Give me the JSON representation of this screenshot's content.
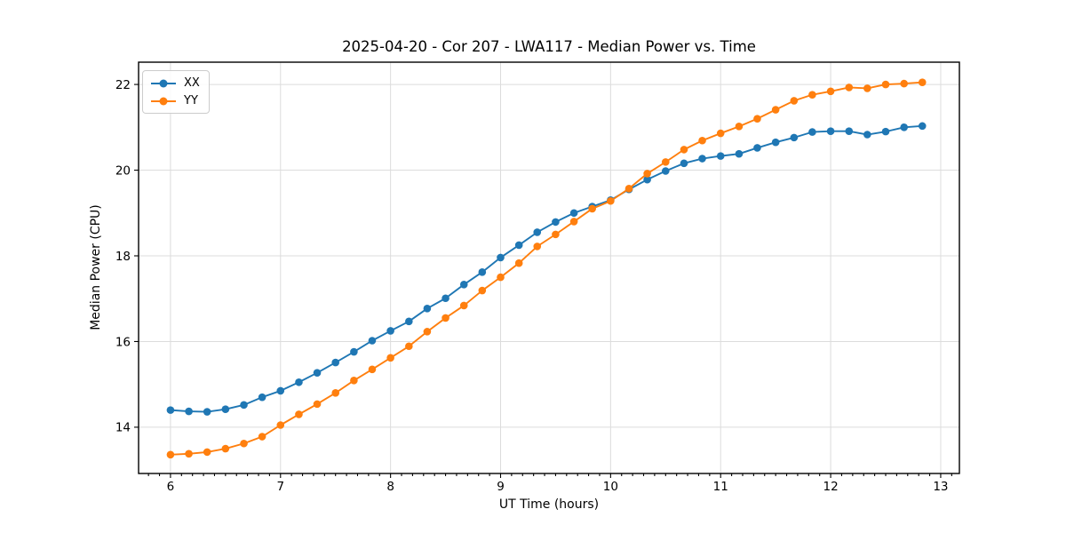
{
  "chart_data": {
    "type": "line",
    "title": "2025-04-20 - Cor 207 - LWA117 - Median Power vs. Time",
    "xlabel": "UT Time (hours)",
    "ylabel": "Median Power (CPU)",
    "xlim": [
      5.71,
      13.17
    ],
    "ylim": [
      12.92,
      22.52
    ],
    "xticks": [
      6,
      7,
      8,
      9,
      10,
      11,
      12,
      13
    ],
    "x_minor_step": 0.1,
    "yticks": [
      14,
      16,
      18,
      20,
      22
    ],
    "grid": true,
    "grid_color": "#dcdcdc",
    "spine_color": "#000000",
    "legend_position": "upper-left",
    "x": [
      6.0,
      6.167,
      6.333,
      6.5,
      6.667,
      6.833,
      7.0,
      7.167,
      7.333,
      7.5,
      7.667,
      7.833,
      8.0,
      8.167,
      8.333,
      8.5,
      8.667,
      8.833,
      9.0,
      9.167,
      9.333,
      9.5,
      9.667,
      9.833,
      10.0,
      10.167,
      10.333,
      10.5,
      10.667,
      10.833,
      11.0,
      11.167,
      11.333,
      11.5,
      11.667,
      11.833,
      12.0,
      12.167,
      12.333,
      12.5,
      12.667,
      12.833
    ],
    "series": [
      {
        "name": "XX",
        "color": "#1f77b4",
        "values": [
          14.4,
          14.37,
          14.36,
          14.42,
          14.52,
          14.7,
          14.85,
          15.05,
          15.27,
          15.51,
          15.76,
          16.02,
          16.25,
          16.47,
          16.77,
          17.01,
          17.33,
          17.62,
          17.96,
          18.25,
          18.55,
          18.79,
          19.0,
          19.15,
          19.3,
          19.55,
          19.78,
          19.98,
          20.16,
          20.27,
          20.33,
          20.38,
          20.52,
          20.65,
          20.76,
          20.89,
          20.91,
          20.91,
          20.83,
          20.9,
          21.0,
          21.03
        ]
      },
      {
        "name": "YY",
        "color": "#ff7f0e",
        "values": [
          13.36,
          13.38,
          13.42,
          13.5,
          13.62,
          13.78,
          14.05,
          14.3,
          14.54,
          14.8,
          15.09,
          15.35,
          15.62,
          15.89,
          16.23,
          16.55,
          16.84,
          17.19,
          17.5,
          17.83,
          18.22,
          18.5,
          18.8,
          19.1,
          19.28,
          19.57,
          19.92,
          20.19,
          20.48,
          20.69,
          20.86,
          21.02,
          21.2,
          21.41,
          21.62,
          21.76,
          21.84,
          21.93,
          21.91,
          22.0,
          22.02,
          22.05
        ]
      }
    ]
  }
}
